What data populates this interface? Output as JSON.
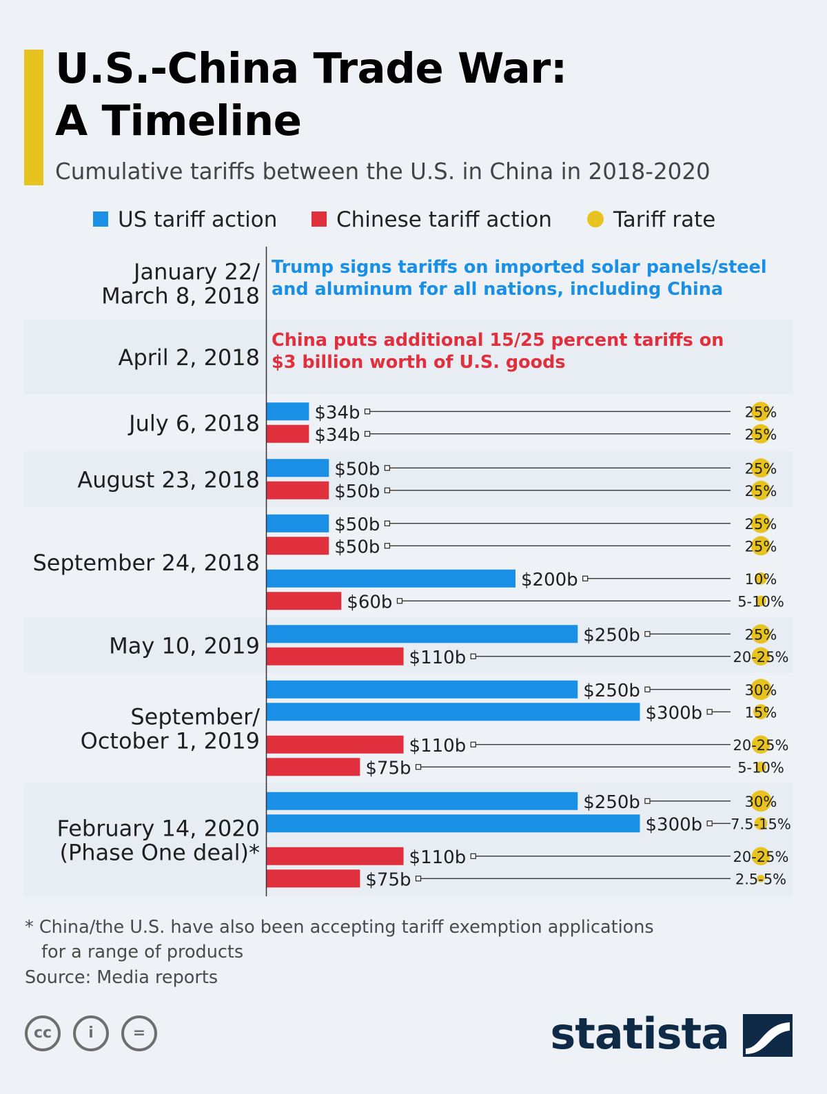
{
  "header": {
    "title_line1": "U.S.-China Trade War:",
    "title_line2": "A Timeline",
    "subtitle": "Cumulative tariffs between the U.S. in China in 2018-2020"
  },
  "legend": {
    "us": "US tariff action",
    "china": "Chinese tariff action",
    "rate": "Tariff rate"
  },
  "colors": {
    "us": "#1a8fe6",
    "china": "#e0303e",
    "rate": "#e8c21e",
    "band": "#e8ecf3",
    "axis": "#333333"
  },
  "chart_data": {
    "type": "bar",
    "orientation": "horizontal",
    "value_unit": "USD billions",
    "periods": [
      {
        "label": [
          "January 22/",
          "March 8, 2018"
        ],
        "note": [
          "Trump signs tariffs on imported solar panels/steel",
          "and aluminum for all nations, including China"
        ],
        "note_side": "us",
        "bars": []
      },
      {
        "label": [
          "April 2, 2018"
        ],
        "note": [
          "China puts additional 15/25 percent tariffs on",
          "$3 billion worth of U.S. goods"
        ],
        "note_side": "china",
        "bars": []
      },
      {
        "label": [
          "July 6, 2018"
        ],
        "bars": [
          {
            "side": "us",
            "value": 34,
            "value_label": "$34b",
            "rate": "25%",
            "rate_value": 25
          },
          {
            "side": "china",
            "value": 34,
            "value_label": "$34b",
            "rate": "25%",
            "rate_value": 25
          }
        ]
      },
      {
        "label": [
          "August 23, 2018"
        ],
        "bars": [
          {
            "side": "us",
            "value": 50,
            "value_label": "$50b",
            "rate": "25%",
            "rate_value": 25
          },
          {
            "side": "china",
            "value": 50,
            "value_label": "$50b",
            "rate": "25%",
            "rate_value": 25
          }
        ]
      },
      {
        "label": [
          "September 24, 2018"
        ],
        "bars": [
          {
            "side": "us",
            "value": 50,
            "value_label": "$50b",
            "rate": "25%",
            "rate_value": 25
          },
          {
            "side": "china",
            "value": 50,
            "value_label": "$50b",
            "rate": "25%",
            "rate_value": 25
          },
          {
            "side": "us",
            "value": 200,
            "value_label": "$200b",
            "rate": "10%",
            "rate_value": 10
          },
          {
            "side": "china",
            "value": 60,
            "value_label": "$60b",
            "rate": "5-10%",
            "rate_value": 7.5
          }
        ]
      },
      {
        "label": [
          "May 10, 2019"
        ],
        "bars": [
          {
            "side": "us",
            "value": 250,
            "value_label": "$250b",
            "rate": "25%",
            "rate_value": 25
          },
          {
            "side": "china",
            "value": 110,
            "value_label": "$110b",
            "rate": "20-25%",
            "rate_value": 22.5
          }
        ]
      },
      {
        "label": [
          "September/",
          "October 1, 2019"
        ],
        "bars": [
          {
            "side": "us",
            "value": 250,
            "value_label": "$250b",
            "rate": "30%",
            "rate_value": 30
          },
          {
            "side": "us",
            "value": 300,
            "value_label": "$300b",
            "rate": "15%",
            "rate_value": 15
          },
          {
            "side": "china",
            "value": 110,
            "value_label": "$110b",
            "rate": "20-25%",
            "rate_value": 22.5
          },
          {
            "side": "china",
            "value": 75,
            "value_label": "$75b",
            "rate": "5-10%",
            "rate_value": 7.5
          }
        ]
      },
      {
        "label": [
          "February 14, 2020",
          "(Phase One deal)*"
        ],
        "bars": [
          {
            "side": "us",
            "value": 250,
            "value_label": "$250b",
            "rate": "30%",
            "rate_value": 30
          },
          {
            "side": "us",
            "value": 300,
            "value_label": "$300b",
            "rate": "7.5-15%",
            "rate_value": 11.25
          },
          {
            "side": "china",
            "value": 110,
            "value_label": "$110b",
            "rate": "20-25%",
            "rate_value": 22.5
          },
          {
            "side": "china",
            "value": 75,
            "value_label": "$75b",
            "rate": "2.5-5%",
            "rate_value": 3.75
          }
        ]
      }
    ]
  },
  "footer": {
    "footnote_line1": "* China/the U.S. have also been accepting tariff exemption applications",
    "footnote_line2": "for a range of products",
    "source": "Source: Media reports",
    "cc": "cc",
    "by": "i",
    "nd": "=",
    "brand": "statista"
  }
}
